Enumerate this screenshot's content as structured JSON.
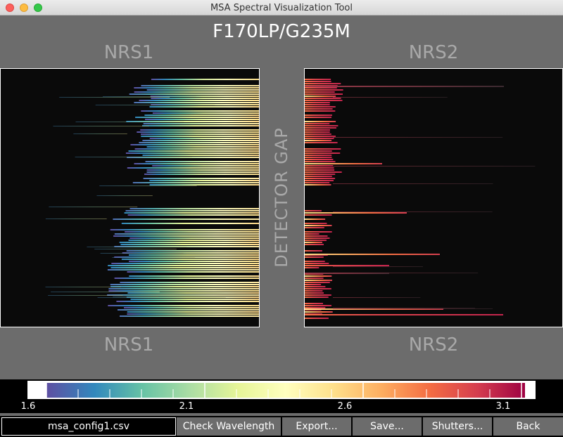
{
  "window": {
    "title": "MSA Spectral Visualization Tool"
  },
  "main_title": "F170LP/G235M",
  "detectors": {
    "left": {
      "top_label": "NRS1",
      "bottom_label": "NRS1"
    },
    "right": {
      "top_label": "NRS2",
      "bottom_label": "NRS2"
    }
  },
  "gap_label": "DETECTOR GAP",
  "colorbar": {
    "range": [
      1.6,
      3.2
    ],
    "tick_labels": [
      "1.6",
      "2.1",
      "2.6",
      "3.1"
    ],
    "colors": [
      "#5e4fa2",
      "#3288bd",
      "#66c2a5",
      "#abdda4",
      "#e6f598",
      "#ffffbf",
      "#fee08b",
      "#fdae61",
      "#f46d43",
      "#d53e4f",
      "#9e0142"
    ]
  },
  "bottom_bar": {
    "filename": "msa_config1.csv",
    "buttons": [
      "Check Wavelength",
      "Export...",
      "Save...",
      "Shutters...",
      "Back"
    ]
  }
}
